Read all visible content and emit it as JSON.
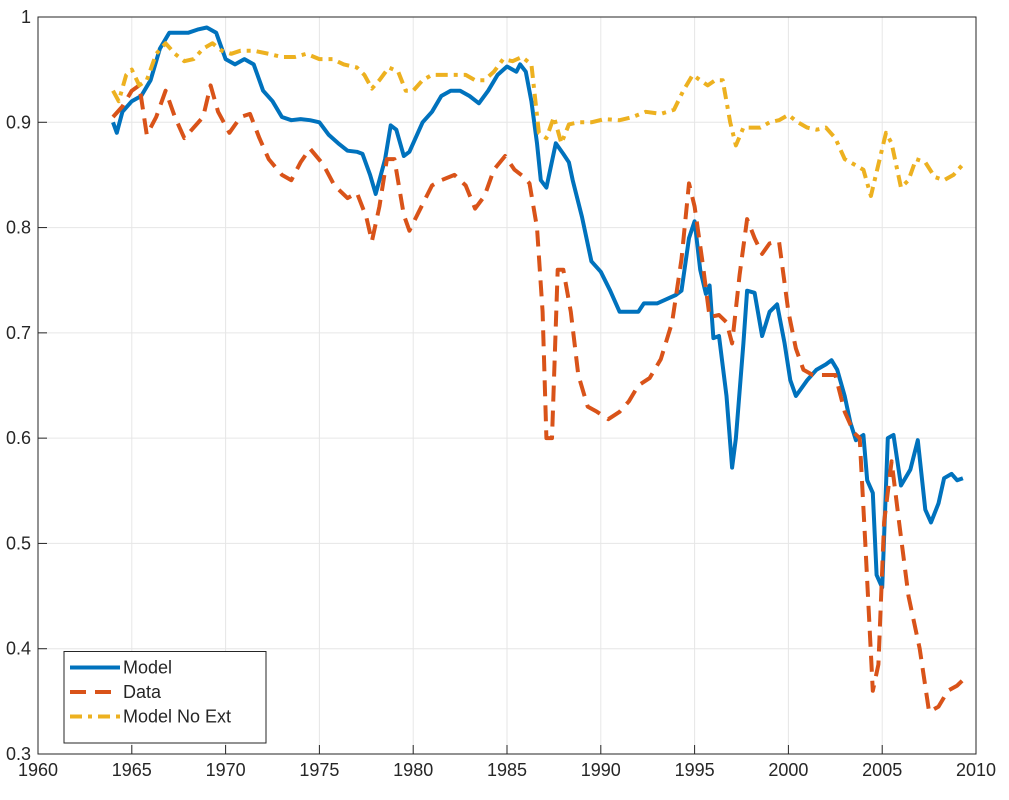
{
  "chart_data": {
    "type": "line",
    "grid": true,
    "legend": "lower left",
    "xlim": [
      1960,
      2010
    ],
    "xticks": [
      1960,
      1965,
      1970,
      1975,
      1980,
      1985,
      1990,
      1995,
      2000,
      2005,
      2010
    ],
    "ylim": [
      0.3,
      1
    ],
    "yticks": [
      0.3,
      0.4,
      0.5,
      0.6,
      0.7,
      0.8,
      0.9,
      1
    ],
    "series": [
      {
        "name": "Model",
        "color": "#0072BD",
        "style": "solid",
        "x": [
          1964,
          1964.2,
          1964.5,
          1965,
          1965.5,
          1966,
          1966.5,
          1967,
          1968,
          1968.5,
          1969,
          1969.5,
          1970,
          1970.5,
          1971,
          1971.5,
          1972,
          1972.5,
          1973,
          1973.5,
          1974,
          1974.5,
          1975,
          1975.5,
          1976,
          1976.5,
          1977,
          1977.3,
          1977.7,
          1978,
          1978.5,
          1978.8,
          1979.1,
          1979.5,
          1979.8,
          1980,
          1980.5,
          1981,
          1981.5,
          1982,
          1982.5,
          1983,
          1983.5,
          1984,
          1984.5,
          1985,
          1985.5,
          1985.7,
          1986,
          1986.3,
          1986.6,
          1986.8,
          1987.1,
          1987.6,
          1988,
          1988.3,
          1988.5,
          1989,
          1989.5,
          1990,
          1990.5,
          1991,
          1991.5,
          1992,
          1992.3,
          1993,
          1993.5,
          1994,
          1994.3,
          1994.7,
          1995,
          1995.3,
          1995.6,
          1995.8,
          1996,
          1996.3,
          1996.7,
          1997,
          1997.2,
          1997.6,
          1997.8,
          1998.2,
          1998.6,
          1999,
          1999.4,
          1999.8,
          2000.1,
          2000.4,
          2001,
          2001.5,
          2002,
          2002.3,
          2002.6,
          2003,
          2003.3,
          2003.6,
          2004,
          2004.2,
          2004.5,
          2004.7,
          2005,
          2005.3,
          2005.6,
          2006,
          2006.5,
          2006.9,
          2007.3,
          2007.6,
          2008,
          2008.3,
          2008.7,
          2009,
          2009.3
        ],
        "values": [
          0.9,
          0.89,
          0.91,
          0.92,
          0.925,
          0.94,
          0.97,
          0.985,
          0.985,
          0.988,
          0.99,
          0.985,
          0.96,
          0.955,
          0.96,
          0.955,
          0.93,
          0.92,
          0.905,
          0.902,
          0.903,
          0.902,
          0.9,
          0.888,
          0.88,
          0.873,
          0.872,
          0.87,
          0.85,
          0.832,
          0.865,
          0.897,
          0.893,
          0.868,
          0.872,
          0.88,
          0.9,
          0.91,
          0.925,
          0.93,
          0.93,
          0.925,
          0.918,
          0.93,
          0.945,
          0.953,
          0.948,
          0.955,
          0.948,
          0.92,
          0.88,
          0.845,
          0.838,
          0.88,
          0.87,
          0.862,
          0.845,
          0.81,
          0.768,
          0.758,
          0.74,
          0.72,
          0.72,
          0.72,
          0.728,
          0.728,
          0.732,
          0.736,
          0.74,
          0.79,
          0.806,
          0.76,
          0.737,
          0.745,
          0.695,
          0.697,
          0.64,
          0.572,
          0.6,
          0.69,
          0.74,
          0.738,
          0.697,
          0.72,
          0.727,
          0.69,
          0.655,
          0.64,
          0.655,
          0.665,
          0.67,
          0.674,
          0.665,
          0.64,
          0.615,
          0.598,
          0.603,
          0.56,
          0.548,
          0.47,
          0.458,
          0.6,
          0.603,
          0.555,
          0.57,
          0.598,
          0.532,
          0.52,
          0.538,
          0.562,
          0.566,
          0.56,
          0.562
        ]
      },
      {
        "name": "Data",
        "color": "#D95319",
        "style": "dashed",
        "x": [
          1964,
          1964.5,
          1965,
          1965.4,
          1965.8,
          1966.3,
          1966.8,
          1967.3,
          1967.8,
          1968.3,
          1968.8,
          1969.2,
          1969.6,
          1970.2,
          1970.8,
          1971.3,
          1971.8,
          1972.3,
          1973,
          1973.5,
          1974,
          1974.5,
          1975.2,
          1975.8,
          1976.5,
          1977,
          1977.5,
          1977.8,
          1978.2,
          1978.6,
          1979,
          1979.5,
          1979.8,
          1980.3,
          1981,
          1981.5,
          1982.2,
          1982.8,
          1983.3,
          1983.8,
          1984.3,
          1984.9,
          1985.4,
          1985.9,
          1986.2,
          1986.6,
          1986.9,
          1987.1,
          1987.4,
          1987.7,
          1988,
          1988.4,
          1988.8,
          1989.3,
          1989.8,
          1990.4,
          1991,
          1991.5,
          1992,
          1992.6,
          1993.2,
          1993.8,
          1994.3,
          1994.7,
          1995,
          1995.4,
          1995.8,
          1996.3,
          1996.7,
          1997,
          1997.4,
          1997.8,
          1998.2,
          1998.6,
          1999,
          1999.5,
          2000,
          2000.4,
          2000.8,
          2001.3,
          2002,
          2002.5,
          2003,
          2003.5,
          2003.8,
          2004.1,
          2004.5,
          2004.8,
          2005.1,
          2005.5,
          2005.9,
          2006.4,
          2007,
          2007.5,
          2008,
          2008.5,
          2009,
          2009.4
        ],
        "values": [
          0.905,
          0.915,
          0.93,
          0.935,
          0.888,
          0.905,
          0.93,
          0.905,
          0.885,
          0.895,
          0.905,
          0.935,
          0.91,
          0.89,
          0.905,
          0.908,
          0.885,
          0.865,
          0.85,
          0.845,
          0.862,
          0.875,
          0.86,
          0.84,
          0.828,
          0.833,
          0.81,
          0.787,
          0.82,
          0.865,
          0.865,
          0.812,
          0.797,
          0.815,
          0.84,
          0.845,
          0.85,
          0.84,
          0.818,
          0.83,
          0.855,
          0.868,
          0.855,
          0.848,
          0.842,
          0.8,
          0.72,
          0.6,
          0.6,
          0.76,
          0.76,
          0.72,
          0.66,
          0.63,
          0.625,
          0.618,
          0.625,
          0.635,
          0.65,
          0.657,
          0.675,
          0.71,
          0.77,
          0.842,
          0.82,
          0.77,
          0.715,
          0.717,
          0.71,
          0.69,
          0.755,
          0.808,
          0.79,
          0.775,
          0.785,
          0.787,
          0.72,
          0.685,
          0.665,
          0.66,
          0.66,
          0.66,
          0.625,
          0.605,
          0.6,
          0.5,
          0.36,
          0.385,
          0.52,
          0.578,
          0.52,
          0.45,
          0.4,
          0.34,
          0.345,
          0.36,
          0.365,
          0.372
        ]
      },
      {
        "name": "Model No Ext",
        "color": "#EDB120",
        "style": "dashdot",
        "x": [
          1964,
          1964.3,
          1964.7,
          1965,
          1965.4,
          1965.8,
          1966.3,
          1966.8,
          1967.3,
          1967.8,
          1968.3,
          1968.8,
          1969.3,
          1969.8,
          1970.3,
          1970.8,
          1971.5,
          1972.3,
          1973,
          1973.7,
          1974.3,
          1975,
          1975.7,
          1976.3,
          1977,
          1977.4,
          1977.8,
          1978.2,
          1978.7,
          1979.2,
          1979.6,
          1980,
          1980.5,
          1981,
          1981.6,
          1982.2,
          1982.8,
          1983.3,
          1983.8,
          1984.3,
          1984.8,
          1985.3,
          1985.8,
          1986.3,
          1986.7,
          1987.1,
          1987.5,
          1987.9,
          1988.3,
          1988.8,
          1989.5,
          1990.2,
          1991,
          1991.7,
          1992.4,
          1993.2,
          1993.9,
          1994.4,
          1994.9,
          1995.3,
          1995.7,
          1996.1,
          1996.5,
          1996.9,
          1997.2,
          1997.6,
          1998,
          1998.5,
          1999,
          1999.5,
          2000,
          2000.5,
          2001,
          2001.5,
          2002,
          2002.5,
          2003,
          2003.5,
          2004,
          2004.4,
          2004.8,
          2005.2,
          2005.5,
          2006,
          2006.4,
          2006.8,
          2007.3,
          2007.8,
          2008.3,
          2008.8,
          2009.3
        ],
        "values": [
          0.93,
          0.92,
          0.945,
          0.95,
          0.935,
          0.94,
          0.965,
          0.975,
          0.965,
          0.958,
          0.96,
          0.97,
          0.975,
          0.968,
          0.965,
          0.968,
          0.968,
          0.965,
          0.962,
          0.962,
          0.965,
          0.96,
          0.96,
          0.955,
          0.952,
          0.945,
          0.932,
          0.94,
          0.952,
          0.948,
          0.93,
          0.93,
          0.94,
          0.945,
          0.945,
          0.945,
          0.945,
          0.94,
          0.94,
          0.948,
          0.96,
          0.958,
          0.962,
          0.955,
          0.89,
          0.885,
          0.905,
          0.88,
          0.898,
          0.9,
          0.9,
          0.903,
          0.902,
          0.905,
          0.91,
          0.908,
          0.912,
          0.93,
          0.945,
          0.94,
          0.935,
          0.94,
          0.94,
          0.9,
          0.878,
          0.895,
          0.895,
          0.895,
          0.9,
          0.902,
          0.907,
          0.9,
          0.895,
          0.893,
          0.895,
          0.885,
          0.865,
          0.86,
          0.855,
          0.83,
          0.86,
          0.89,
          0.88,
          0.838,
          0.845,
          0.865,
          0.862,
          0.848,
          0.845,
          0.85,
          0.86
        ]
      }
    ]
  }
}
